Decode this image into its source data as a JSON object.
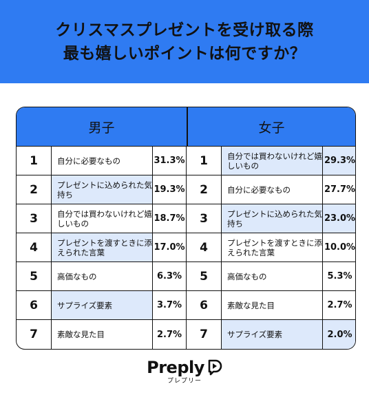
{
  "header": {
    "title_line1": "クリスマスプレゼントを受け取る際",
    "title_line2": "最も嬉しいポイントは何ですか？"
  },
  "table": {
    "male_label": "男子",
    "female_label": "女子",
    "rows": [
      {
        "male_rank": "1",
        "male_item": "自分に必要なもの",
        "male_pct": "31.3%",
        "female_rank": "1",
        "female_item": "自分では買わないけれど嬉しいもの",
        "female_pct": "29.3%"
      },
      {
        "male_rank": "2",
        "male_item": "プレゼントに込められた気持ち",
        "male_pct": "19.3%",
        "female_rank": "2",
        "female_item": "自分に必要なもの",
        "female_pct": "27.7%"
      },
      {
        "male_rank": "3",
        "male_item": "自分では買わないけれど嬉しいもの",
        "male_pct": "18.7%",
        "female_rank": "3",
        "female_item": "プレゼントに込められた気持ち",
        "female_pct": "23.0%"
      },
      {
        "male_rank": "4",
        "male_item": "プレゼントを渡すときに添えられた言葉",
        "male_pct": "17.0%",
        "female_rank": "4",
        "female_item": "プレゼントを渡すときに添えられた言葉",
        "female_pct": "10.0%"
      },
      {
        "male_rank": "5",
        "male_item": "高価なもの",
        "male_pct": "6.3%",
        "female_rank": "5",
        "female_item": "高価なもの",
        "female_pct": "5.3%"
      },
      {
        "male_rank": "6",
        "male_item": "サプライズ要素",
        "male_pct": "3.7%",
        "female_rank": "6",
        "female_item": "素敵な見た目",
        "female_pct": "2.7%"
      },
      {
        "male_rank": "7",
        "male_item": "素敵な見た目",
        "male_pct": "2.7%",
        "female_rank": "7",
        "female_item": "サプライズ要素",
        "female_pct": "2.0%"
      }
    ]
  },
  "brand": {
    "name": "Preply",
    "kana": "プレプリー",
    "logo_icon": "preply-bubble-icon"
  },
  "colors": {
    "accent": "#2f7bf2",
    "shade": "#dde9fb"
  }
}
